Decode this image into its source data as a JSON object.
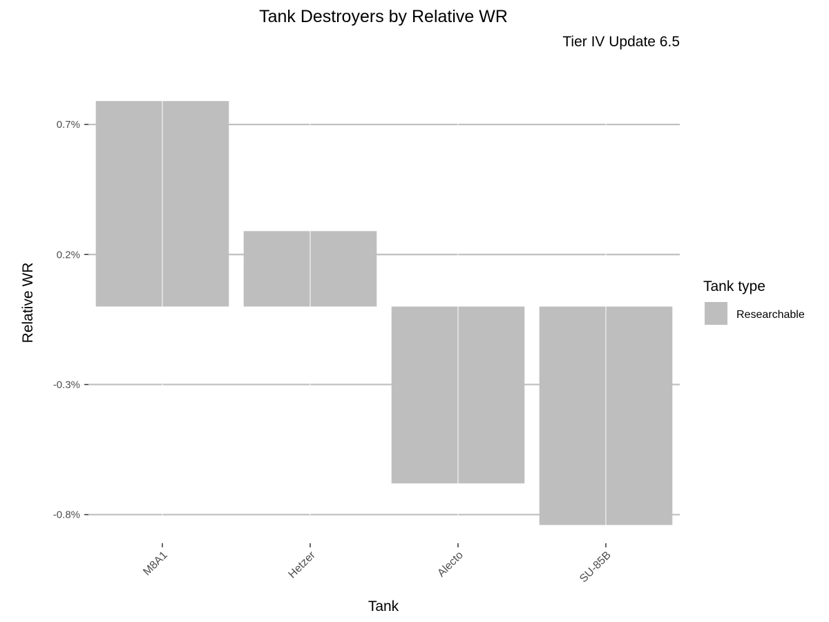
{
  "chart_data": {
    "type": "bar",
    "title": "Tank Destroyers by Relative WR",
    "subtitle": "Tier IV Update 6.5",
    "xlabel": "Tank",
    "ylabel": "Relative WR",
    "categories": [
      "M8A1",
      "Hetzer",
      "Alecto",
      "SU-85B"
    ],
    "series": [
      {
        "name": "Researchable",
        "values": [
          0.79,
          0.29,
          -0.68,
          -0.84
        ],
        "color": "#bebebe"
      }
    ],
    "ylim": [
      -0.91,
      0.95
    ],
    "yticks": [
      0.7,
      0.2,
      -0.3,
      -0.8
    ],
    "ytick_labels": [
      "0.7%",
      "0.2%",
      "-0.3%",
      "-0.8%"
    ],
    "legend": {
      "title": "Tank type",
      "placement": "right",
      "entries": [
        "Researchable"
      ]
    },
    "grid": true,
    "x_tick_rotation": -45
  }
}
